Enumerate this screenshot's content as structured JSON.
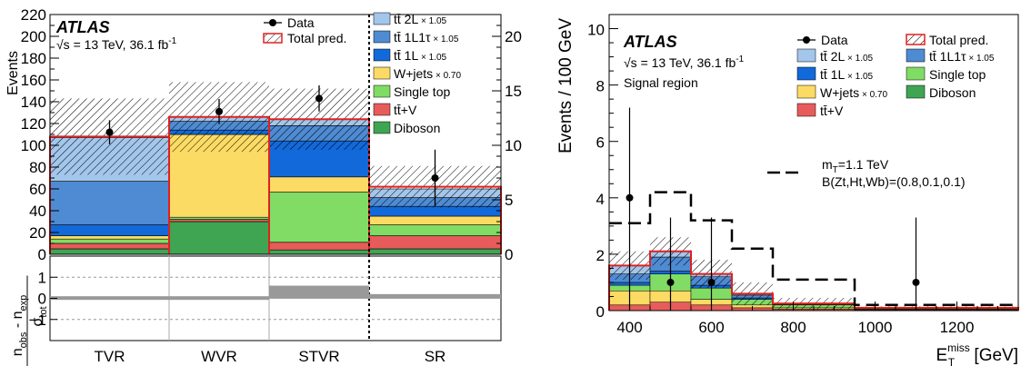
{
  "colors": {
    "ttbar2L": "#a3c6eb",
    "ttbar1L1tau": "#4e8bd2",
    "ttbar1L": "#1269d9",
    "wjets": "#fcdb64",
    "singletop": "#80dc64",
    "ttv": "#e85b5b",
    "diboson": "#3fa553",
    "signal": "#000000",
    "total": "#e02020"
  },
  "chart_data": [
    {
      "type": "bar",
      "chart": "control-regions-yields",
      "categories": [
        "TVR",
        "WVR",
        "STVR",
        "SR"
      ],
      "ylabel": "Events",
      "ylim": [
        0,
        220
      ],
      "yticks": [
        "0",
        "20",
        "40",
        "60",
        "80",
        "100",
        "120",
        "140",
        "160",
        "180",
        "200",
        "220"
      ],
      "ylim_right": [
        0,
        22
      ],
      "yticks_right": [
        "0",
        "5",
        "10",
        "15",
        "20"
      ],
      "atlas_label": "ATLAS",
      "energy_label": "√s = 13 TeV, 36.1 fb",
      "energy_sup": "-1",
      "note": "SR plotted against right axis (0–22)",
      "legend": {
        "data": "Data",
        "total": "Total pred.",
        "entries": [
          {
            "key": "ttbar2L",
            "text": "tt̄ 2L",
            "scale": "× 1.05"
          },
          {
            "key": "ttbar1L1tau",
            "text": "tt̄ 1L1τ",
            "scale": "× 1.05"
          },
          {
            "key": "ttbar1L",
            "text": "tt̄ 1L",
            "scale": "× 1.05"
          },
          {
            "key": "wjets",
            "text": "W+jets",
            "scale": "× 0.70"
          },
          {
            "key": "singletop",
            "text": "Single top",
            "scale": ""
          },
          {
            "key": "ttv",
            "text": "tt̄+V",
            "scale": ""
          },
          {
            "key": "diboson",
            "text": "Diboson",
            "scale": ""
          }
        ]
      },
      "stacks": [
        {
          "region": "TVR",
          "diboson": 5,
          "ttv": 5,
          "singletop": 4,
          "wjets": 3,
          "ttbar1L": 10,
          "ttbar1L1tau": 40,
          "ttbar2L": 40,
          "total": 108,
          "unc": 35,
          "data": 112,
          "data_err": 11
        },
        {
          "region": "WVR",
          "diboson": 30,
          "ttv": 2,
          "singletop": 2,
          "wjets": 76,
          "ttbar1L": 4,
          "ttbar1L1tau": 8,
          "ttbar2L": 4,
          "total": 126,
          "unc": 32,
          "data": 131,
          "data_err": 11.5
        },
        {
          "region": "STVR",
          "diboson": 4,
          "ttv": 7,
          "singletop": 46,
          "wjets": 14,
          "ttbar1L": 33,
          "ttbar1L1tau": 14,
          "ttbar2L": 6,
          "total": 124,
          "unc": 28,
          "data": 143,
          "data_err": 12
        },
        {
          "region": "SR",
          "diboson": 0.5,
          "ttv": 1.2,
          "singletop": 1.0,
          "wjets": 0.8,
          "ttbar1L": 0.9,
          "ttbar1L1tau": 0.8,
          "ttbar2L": 0.8,
          "total": 6.2,
          "unc": 1.9,
          "data": 7,
          "data_err": 2.6
        }
      ],
      "ratio": {
        "ylabel_top": "n",
        "ylabel_sub1": "obs",
        "ylabel_mid": " - n",
        "ylabel_sub2": "exp",
        "ylabel_den": "σ",
        "ylabel_den_sub": "tot",
        "ylim": [
          -2,
          2
        ],
        "yticks": [
          "1",
          "0",
          "−1"
        ],
        "values": [
          0.1,
          0.1,
          0.6,
          0.2
        ]
      }
    },
    {
      "type": "bar",
      "chart": "signal-region-met",
      "xlabel": "E",
      "xlabel_sup": "miss",
      "xlabel_sub": "T",
      "xlabel_unit": " [GeV]",
      "ylabel": "Events / 100 GeV",
      "xlim": [
        350,
        1350
      ],
      "ylim": [
        0,
        10.5
      ],
      "xticks": [
        "400",
        "600",
        "800",
        "1000",
        "1200"
      ],
      "yticks": [
        "0",
        "2",
        "4",
        "6",
        "8",
        "10"
      ],
      "atlas_label": "ATLAS",
      "energy_label": "√s = 13 TeV, 36.1 fb",
      "energy_sup": "-1",
      "region_label": "Signal region",
      "signal_label_1": "m",
      "signal_label_1_sub": "T",
      "signal_label_1_rest": "=1.1 TeV",
      "signal_label_2": "B(Zt,Ht,Wb)=(0.8,0.1,0.1)",
      "legend": {
        "data": "Data",
        "total": "Total pred.",
        "entries": [
          {
            "key": "ttbar2L",
            "text": "tt̄ 2L",
            "scale": "× 1.05"
          },
          {
            "key": "ttbar1L1tau",
            "text": "tt̄ 1L1τ",
            "scale": "× 1.05"
          },
          {
            "key": "ttbar1L",
            "text": "tt̄ 1L",
            "scale": "× 1.05"
          },
          {
            "key": "singletop",
            "text": "Single top",
            "scale": ""
          },
          {
            "key": "wjets",
            "text": "W+jets",
            "scale": "× 0.70"
          },
          {
            "key": "diboson",
            "text": "Diboson",
            "scale": ""
          },
          {
            "key": "ttv",
            "text": "tt̄+V",
            "scale": ""
          }
        ]
      },
      "bins": [
        {
          "lo": 350,
          "hi": 450,
          "ttv": 0.2,
          "wjets": 0.5,
          "singletop": 0.2,
          "ttbar1L": 0.1,
          "ttbar1L1tau": 0.3,
          "ttbar2L": 0.3,
          "total": 1.6,
          "unc": 0.5,
          "signal": 3.1
        },
        {
          "lo": 450,
          "hi": 550,
          "ttv": 0.3,
          "wjets": 0.4,
          "singletop": 0.6,
          "ttbar1L": 0.1,
          "ttbar1L1tau": 0.5,
          "ttbar2L": 0.2,
          "total": 2.1,
          "unc": 0.5,
          "signal": 4.2
        },
        {
          "lo": 550,
          "hi": 650,
          "ttv": 0.2,
          "wjets": 0.2,
          "singletop": 0.4,
          "ttbar1L": 0.1,
          "ttbar1L1tau": 0.3,
          "ttbar2L": 0.1,
          "total": 1.3,
          "unc": 0.5,
          "signal": 3.2
        },
        {
          "lo": 650,
          "hi": 750,
          "ttv": 0.1,
          "wjets": 0.1,
          "singletop": 0.2,
          "ttbar1L": 0.05,
          "ttbar1L1tau": 0.1,
          "ttbar2L": 0.05,
          "total": 0.6,
          "unc": 0.4,
          "signal": 2.2
        },
        {
          "lo": 750,
          "hi": 950,
          "ttv": 0.05,
          "wjets": 0.05,
          "singletop": 0.1,
          "ttbar1L": 0.02,
          "ttbar1L1tau": 0.03,
          "ttbar2L": 0.02,
          "total": 0.25,
          "unc": 0.2,
          "signal": 1.1
        },
        {
          "lo": 950,
          "hi": 1350,
          "ttv": 0.03,
          "wjets": 0.02,
          "singletop": 0.02,
          "ttbar1L": 0.01,
          "ttbar1L1tau": 0.01,
          "ttbar2L": 0.01,
          "total": 0.1,
          "unc": 0.05,
          "signal": 0.2
        }
      ],
      "data_points": [
        {
          "x": 400,
          "y": 4,
          "err_lo": 4,
          "err_hi": 3.2
        },
        {
          "x": 500,
          "y": 1,
          "err_lo": 1,
          "err_hi": 2.3
        },
        {
          "x": 600,
          "y": 1,
          "err_lo": 1,
          "err_hi": 2.3
        },
        {
          "x": 1100,
          "y": 1,
          "err_lo": 1,
          "err_hi": 2.3
        }
      ]
    }
  ]
}
